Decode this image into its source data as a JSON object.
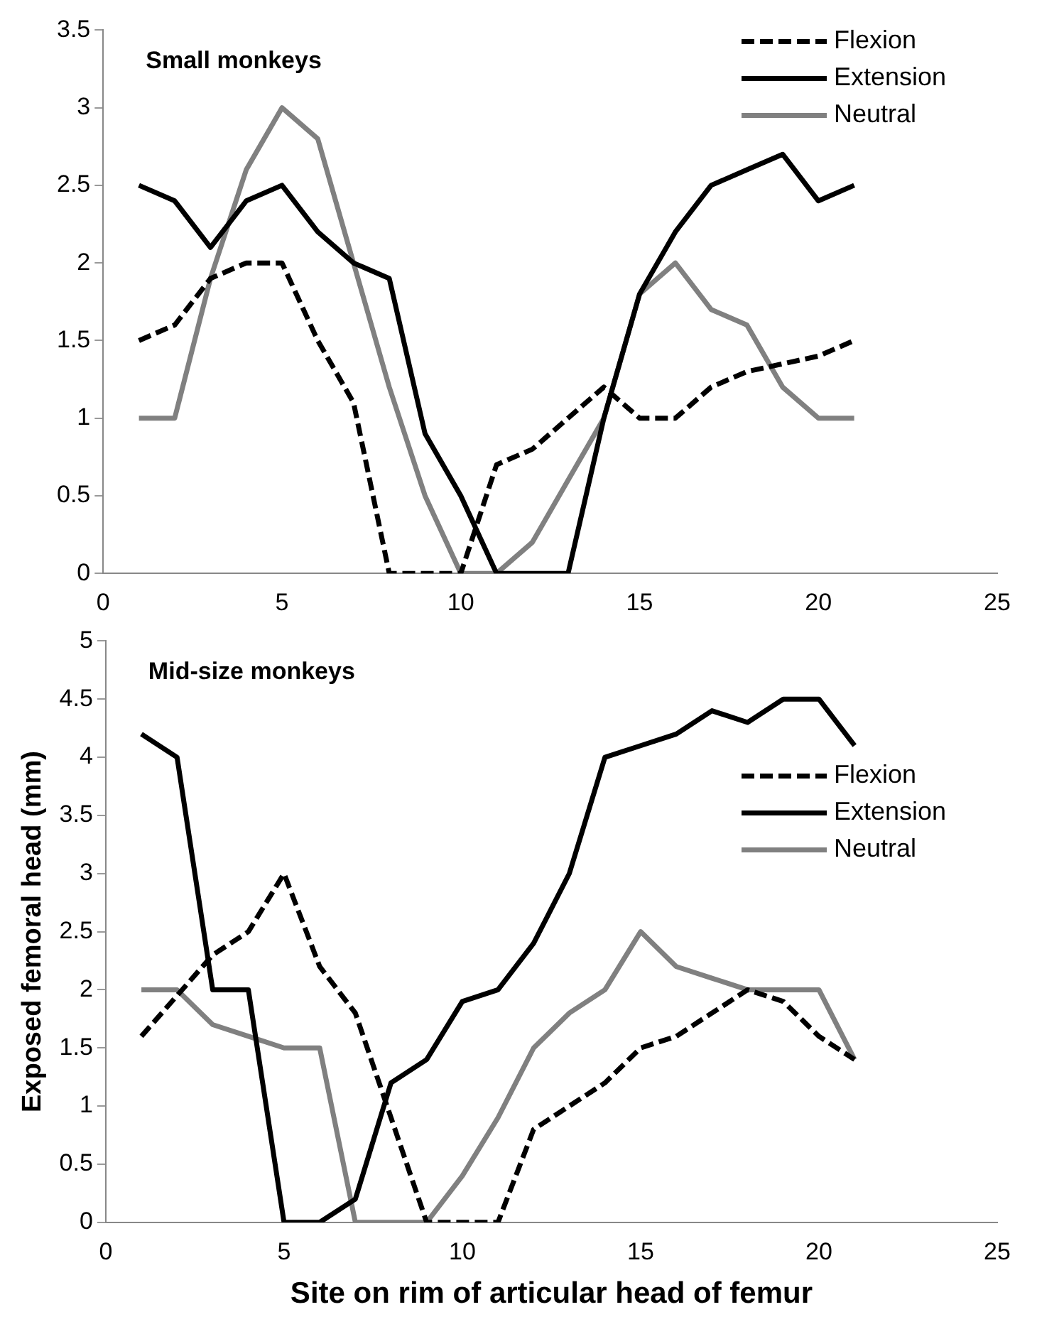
{
  "chart_data": [
    {
      "type": "line",
      "title": "Small monkeys",
      "x": [
        1,
        2,
        3,
        4,
        5,
        6,
        7,
        8,
        9,
        10,
        11,
        12,
        13,
        14,
        15,
        16,
        17,
        18,
        19,
        20,
        21
      ],
      "xlim": [
        0,
        25
      ],
      "xticks": [
        0,
        5,
        10,
        15,
        20,
        25
      ],
      "ylim": [
        0,
        3.5
      ],
      "yticks": [
        0,
        0.5,
        1,
        1.5,
        2,
        2.5,
        3,
        3.5
      ],
      "grid": false,
      "legend": "top right",
      "marker": "none",
      "series": [
        {
          "name": "Flexion",
          "color": "#000000",
          "line_style": "dashed",
          "values": [
            1.5,
            1.6,
            1.9,
            2,
            2,
            1.5,
            1.1,
            0,
            0,
            0,
            0.7,
            0.8,
            1,
            1.2,
            1,
            1,
            1.2,
            1.3,
            1.35,
            1.4,
            1.5
          ]
        },
        {
          "name": "Extension",
          "color": "#000000",
          "line_style": "solid",
          "values": [
            2.5,
            2.4,
            2.1,
            2.4,
            2.5,
            2.2,
            2,
            1.9,
            0.9,
            0.5,
            0,
            0,
            0,
            1,
            1.8,
            2.2,
            2.5,
            2.6,
            2.7,
            2.4,
            2.5
          ]
        },
        {
          "name": "Neutral",
          "color": "#808080",
          "line_style": "solid",
          "values": [
            1,
            1,
            1.9,
            2.6,
            3,
            2.8,
            2,
            1.2,
            0.5,
            0,
            0,
            0.2,
            0.6,
            1,
            1.8,
            2,
            1.7,
            1.6,
            1.2,
            1,
            1
          ]
        }
      ]
    },
    {
      "type": "line",
      "title": "Mid-size monkeys",
      "xlabel": "Site on rim of articular head of femur",
      "ylabel": "Exposed femoral head (mm)",
      "x": [
        1,
        2,
        3,
        4,
        5,
        6,
        7,
        8,
        9,
        10,
        11,
        12,
        13,
        14,
        15,
        16,
        17,
        18,
        19,
        20,
        21
      ],
      "xlim": [
        0,
        25
      ],
      "xticks": [
        0,
        5,
        10,
        15,
        20,
        25
      ],
      "ylim": [
        0,
        5
      ],
      "yticks": [
        0,
        0.5,
        1,
        1.5,
        2,
        2.5,
        3,
        3.5,
        4,
        4.5,
        5
      ],
      "grid": false,
      "legend": "right",
      "marker": "none",
      "series": [
        {
          "name": "Flexion",
          "color": "#000000",
          "line_style": "dashed",
          "values": [
            1.6,
            1.95,
            2.3,
            2.5,
            3,
            2.2,
            1.8,
            0.9,
            0,
            0,
            0,
            0.8,
            1,
            1.2,
            1.5,
            1.6,
            1.8,
            2,
            1.9,
            1.6,
            1.4
          ]
        },
        {
          "name": "Extension",
          "color": "#000000",
          "line_style": "solid",
          "values": [
            4.2,
            4,
            2,
            2,
            0,
            0,
            0.2,
            1.2,
            1.4,
            1.9,
            2,
            2.4,
            3,
            4,
            4.1,
            4.2,
            4.4,
            4.3,
            4.5,
            4.5,
            4.1
          ]
        },
        {
          "name": "Neutral",
          "color": "#808080",
          "line_style": "solid",
          "values": [
            2,
            2,
            1.7,
            1.6,
            1.5,
            1.5,
            0,
            0,
            0,
            0.4,
            0.9,
            1.5,
            1.8,
            2,
            2.5,
            2.2,
            2.1,
            2,
            2,
            2,
            1.4
          ]
        }
      ]
    }
  ]
}
